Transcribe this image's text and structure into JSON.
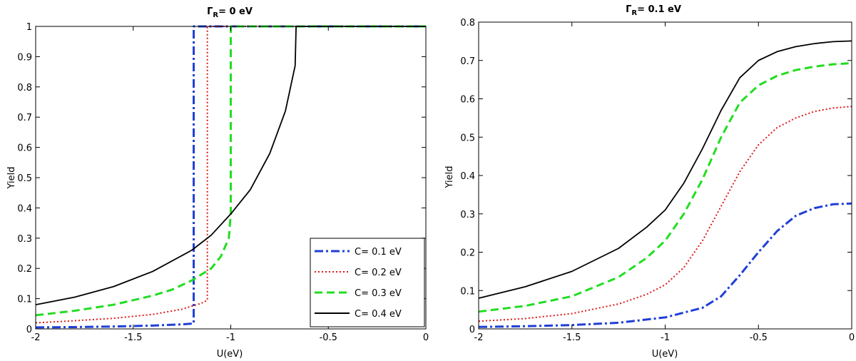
{
  "figure": {
    "colors": {
      "C01": "#1f3fd6",
      "C02": "#e01818",
      "C03": "#22dd22",
      "C04": "#000000"
    }
  },
  "chart_data": [
    {
      "type": "line",
      "title_prefix": "Γ",
      "title_sub": "R",
      "title_suffix": "= 0 eV",
      "xlabel": "U(eV)",
      "ylabel": "Yield",
      "xlim": [
        -2,
        0
      ],
      "ylim": [
        0,
        1
      ],
      "xticks": [
        -2,
        -1.5,
        -1,
        -0.5,
        0
      ],
      "xtick_labels": [
        "-2",
        "-1.5",
        "-1",
        "-0.5",
        "0"
      ],
      "yticks": [
        0,
        0.1,
        0.2,
        0.3,
        0.4,
        0.5,
        0.6,
        0.7,
        0.8,
        0.9,
        1
      ],
      "ytick_labels": [
        "0",
        "0.1",
        "0.2",
        "0.3",
        "0.4",
        "0.5",
        "0.6",
        "0.7",
        "0.8",
        "0.9",
        "1"
      ],
      "grid": false,
      "legend_position": "bottom-right",
      "series": [
        {
          "name": "C= 0.1 eV",
          "style": "dashdot",
          "color": "#1f3fd6",
          "x": [
            -2,
            -1.8,
            -1.6,
            -1.4,
            -1.25,
            -1.19,
            -1.19,
            -1.1,
            -1.0,
            -0.8,
            -0.5,
            0
          ],
          "y": [
            0.005,
            0.006,
            0.008,
            0.011,
            0.015,
            0.018,
            1.0,
            1.0,
            1.0,
            1.0,
            1.0,
            1.0
          ]
        },
        {
          "name": "C= 0.2 eV",
          "style": "dotted",
          "color": "#e01818",
          "x": [
            -2,
            -1.8,
            -1.6,
            -1.4,
            -1.25,
            -1.15,
            -1.12,
            -1.12,
            -1.0,
            -0.5,
            0
          ],
          "y": [
            0.02,
            0.027,
            0.035,
            0.048,
            0.065,
            0.085,
            0.095,
            1.0,
            1.0,
            1.0,
            1.0
          ]
        },
        {
          "name": "C= 0.3 eV",
          "style": "dashed",
          "color": "#22dd22",
          "x": [
            -2,
            -1.8,
            -1.6,
            -1.4,
            -1.3,
            -1.2,
            -1.1,
            -1.05,
            -1.01,
            -1.0,
            -1.0,
            -0.5,
            0
          ],
          "y": [
            0.045,
            0.06,
            0.08,
            0.11,
            0.13,
            0.16,
            0.2,
            0.24,
            0.3,
            0.38,
            1.0,
            1.0,
            1.0
          ]
        },
        {
          "name": "C= 0.4 eV",
          "style": "solid",
          "color": "#000000",
          "x": [
            -2,
            -1.8,
            -1.6,
            -1.4,
            -1.2,
            -1.1,
            -1.0,
            -0.9,
            -0.8,
            -0.72,
            -0.67,
            -0.665,
            -0.5,
            0
          ],
          "y": [
            0.08,
            0.105,
            0.14,
            0.19,
            0.26,
            0.31,
            0.38,
            0.46,
            0.58,
            0.72,
            0.87,
            1.0,
            1.0,
            1.0
          ]
        }
      ]
    },
    {
      "type": "line",
      "title_prefix": "Γ",
      "title_sub": "R",
      "title_suffix": "= 0.1 eV",
      "xlabel": "U(eV)",
      "ylabel": "Yield",
      "xlim": [
        -2,
        0
      ],
      "ylim": [
        0,
        0.8
      ],
      "xticks": [
        -2,
        -1.5,
        -1,
        -0.5,
        0
      ],
      "xtick_labels": [
        "-2",
        "-1.5",
        "-1",
        "-0.5",
        "0"
      ],
      "yticks": [
        0,
        0.1,
        0.2,
        0.3,
        0.4,
        0.5,
        0.6,
        0.7,
        0.8
      ],
      "ytick_labels": [
        "0",
        "0.1",
        "0.2",
        "0.3",
        "0.4",
        "0.5",
        "0.6",
        "0.7",
        "0.8"
      ],
      "grid": false,
      "series": [
        {
          "name": "C= 0.1 eV",
          "style": "dashdot",
          "color": "#1f3fd6",
          "x": [
            -2,
            -1.75,
            -1.5,
            -1.25,
            -1.0,
            -0.8,
            -0.7,
            -0.6,
            -0.5,
            -0.4,
            -0.3,
            -0.2,
            -0.1,
            0
          ],
          "y": [
            0.005,
            0.007,
            0.01,
            0.016,
            0.03,
            0.055,
            0.085,
            0.14,
            0.2,
            0.255,
            0.295,
            0.315,
            0.325,
            0.327
          ]
        },
        {
          "name": "C= 0.2 eV",
          "style": "dotted",
          "color": "#e01818",
          "x": [
            -2,
            -1.75,
            -1.5,
            -1.25,
            -1.1,
            -1.0,
            -0.9,
            -0.8,
            -0.7,
            -0.6,
            -0.5,
            -0.4,
            -0.3,
            -0.2,
            -0.1,
            0
          ],
          "y": [
            0.02,
            0.027,
            0.04,
            0.065,
            0.09,
            0.115,
            0.16,
            0.23,
            0.32,
            0.41,
            0.48,
            0.525,
            0.55,
            0.567,
            0.576,
            0.58
          ]
        },
        {
          "name": "C= 0.3 eV",
          "style": "dashed",
          "color": "#22dd22",
          "x": [
            -2,
            -1.75,
            -1.5,
            -1.25,
            -1.1,
            -1.0,
            -0.9,
            -0.8,
            -0.7,
            -0.6,
            -0.5,
            -0.4,
            -0.3,
            -0.2,
            -0.1,
            0
          ],
          "y": [
            0.045,
            0.06,
            0.085,
            0.135,
            0.185,
            0.23,
            0.3,
            0.39,
            0.5,
            0.59,
            0.635,
            0.66,
            0.675,
            0.684,
            0.69,
            0.693
          ]
        },
        {
          "name": "C= 0.4 eV",
          "style": "solid",
          "color": "#000000",
          "x": [
            -2,
            -1.75,
            -1.5,
            -1.25,
            -1.1,
            -1.0,
            -0.9,
            -0.8,
            -0.7,
            -0.6,
            -0.5,
            -0.4,
            -0.3,
            -0.2,
            -0.1,
            0
          ],
          "y": [
            0.08,
            0.11,
            0.15,
            0.21,
            0.265,
            0.31,
            0.38,
            0.47,
            0.57,
            0.655,
            0.7,
            0.723,
            0.736,
            0.744,
            0.749,
            0.751
          ]
        }
      ]
    }
  ]
}
